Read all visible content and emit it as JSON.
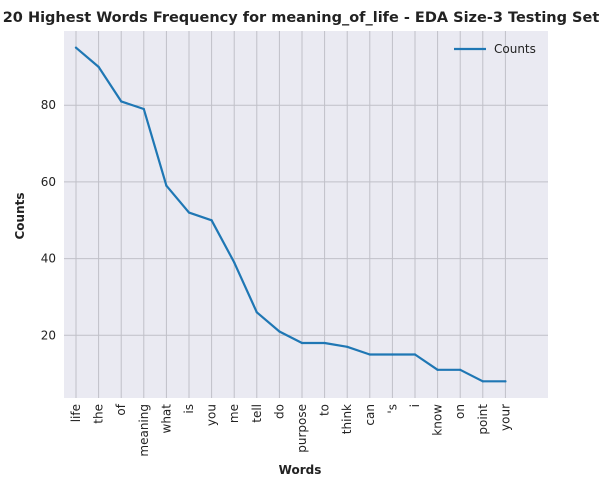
{
  "chart_data": {
    "type": "line",
    "title": "20 Highest Words Frequency for meaning_of_life - EDA Size-3 Testing Set",
    "xlabel": "Words",
    "ylabel": "Counts",
    "categories": [
      "life",
      "the",
      "of",
      "meaning",
      "what",
      "is",
      "you",
      "me",
      "tell",
      "do",
      "purpose",
      "to",
      "think",
      "can",
      "'s",
      "i",
      "know",
      "on",
      "point",
      "your"
    ],
    "series": [
      {
        "name": "Counts",
        "values": [
          95,
          90,
          81,
          79,
          59,
          52,
          50,
          39,
          26,
          21,
          18,
          18,
          17,
          15,
          15,
          15,
          11,
          11,
          8,
          8
        ],
        "color": "#1f77b4"
      }
    ],
    "ylim": [
      3.65,
      99.35
    ],
    "yticks": [
      20,
      40,
      60,
      80
    ],
    "grid": true,
    "legend_position": "top-right",
    "background_color": "#eaeaf2",
    "grid_color": "#c0c0c8"
  }
}
